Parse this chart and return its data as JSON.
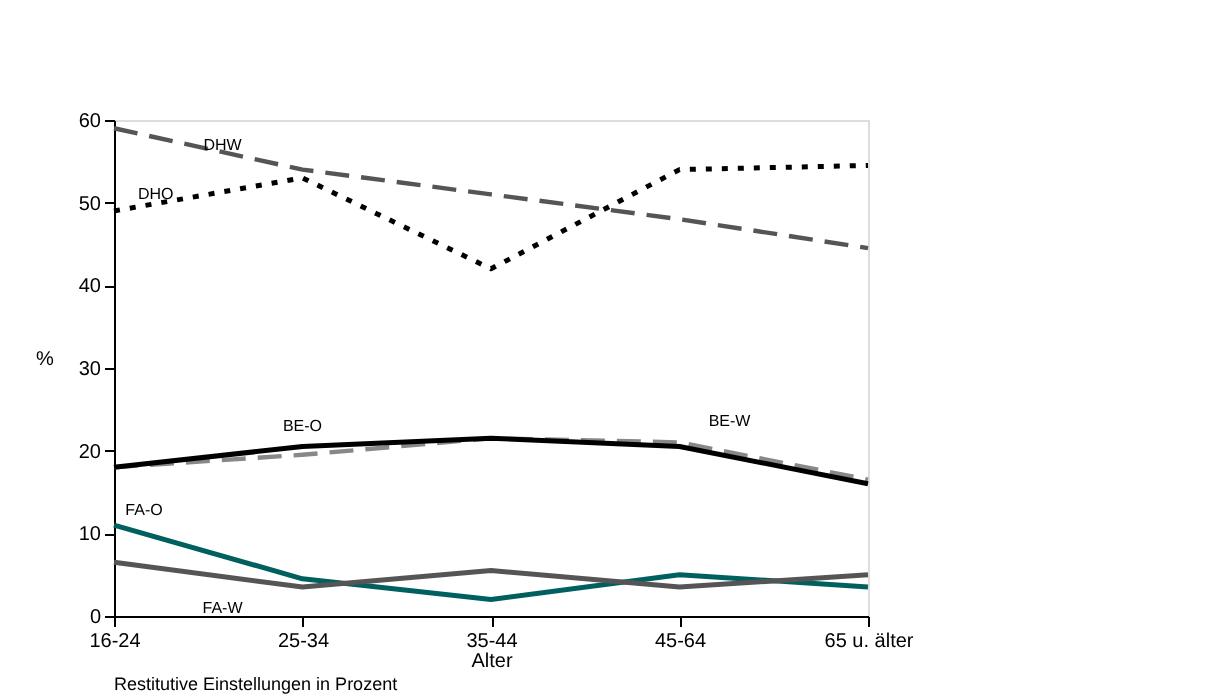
{
  "chart_data": {
    "type": "line",
    "xlabel": "Alter",
    "ylabel": "%",
    "categories": [
      "16-24",
      "25-34",
      "35-44",
      "45-64",
      "65 u. älter"
    ],
    "series": [
      {
        "name": "DHW",
        "color": "#555555",
        "line_style": "dashed",
        "values": [
          59,
          54,
          51,
          48,
          44.5
        ]
      },
      {
        "name": "DHO",
        "color": "#000000",
        "line_style": "dotted",
        "values": [
          49,
          53,
          42,
          54,
          54.5
        ]
      },
      {
        "name": "BE-W",
        "color": "#888888",
        "line_style": "dashed",
        "values": [
          18,
          19.5,
          21.5,
          21,
          16.5
        ]
      },
      {
        "name": "BE-O",
        "color": "#000000",
        "line_style": "solid",
        "values": [
          18,
          20.5,
          21.5,
          20.5,
          16
        ]
      },
      {
        "name": "FA-O",
        "color": "#006060",
        "line_style": "solid",
        "values": [
          11,
          4.5,
          2,
          5,
          3.5
        ]
      },
      {
        "name": "FA-W",
        "color": "#555555",
        "line_style": "solid",
        "values": [
          6.5,
          3.5,
          5.5,
          3.5,
          5
        ]
      }
    ],
    "ylim": [
      0,
      60
    ],
    "yticks": [
      0,
      10,
      20,
      30,
      40,
      50,
      60
    ],
    "grid": false,
    "marker": "none",
    "annotations": [
      "Restitutive Einstellungen in Prozent"
    ]
  }
}
